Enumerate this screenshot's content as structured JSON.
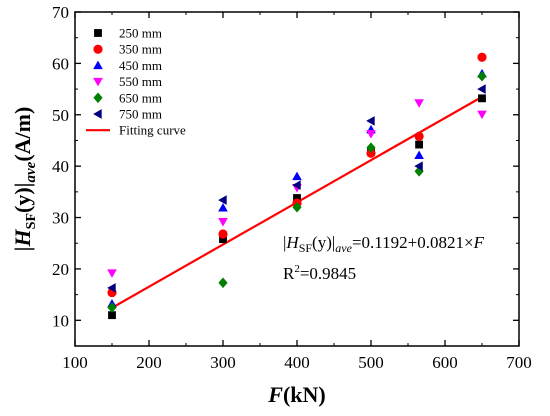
{
  "chart_data": {
    "type": "scatter",
    "xlabel": {
      "italic": "F",
      "rest": "(kN)"
    },
    "ylabel": {
      "bar1": "|",
      "H": "H",
      "sub": "SF",
      "mid": "(y)",
      "bar2": "|",
      "ave": "ave",
      "unit": "(A/m)"
    },
    "xlim": [
      100,
      700
    ],
    "ylim": [
      5,
      70
    ],
    "xticks": [
      "100",
      "200",
      "300",
      "400",
      "500",
      "600",
      "700"
    ],
    "yticks": [
      "10",
      "20",
      "30",
      "40",
      "50",
      "60",
      "70"
    ],
    "legend_position": "top-left",
    "series": [
      {
        "name": "250 mm",
        "marker": "square",
        "color": "#000000",
        "x": [
          150,
          300,
          400,
          500,
          565,
          650
        ],
        "y": [
          11.0,
          25.8,
          33.8,
          43.0,
          44.2,
          53.2
        ]
      },
      {
        "name": "350 mm",
        "marker": "circle",
        "color": "#ff0000",
        "x": [
          150,
          300,
          400,
          500,
          565,
          650
        ],
        "y": [
          15.4,
          26.8,
          32.8,
          42.5,
          45.8,
          61.2
        ]
      },
      {
        "name": "450 mm",
        "marker": "triangle-up",
        "color": "#0000ff",
        "x": [
          150,
          300,
          400,
          500,
          565,
          650
        ],
        "y": [
          13.2,
          31.9,
          38.0,
          47.1,
          42.1,
          58.0
        ]
      },
      {
        "name": "550 mm",
        "marker": "triangle-down",
        "color": "#ff00ff",
        "x": [
          150,
          300,
          400,
          500,
          565,
          650
        ],
        "y": [
          19.2,
          29.2,
          35.8,
          46.3,
          52.3,
          50.1
        ]
      },
      {
        "name": "650 mm",
        "marker": "diamond",
        "color": "#008000",
        "x": [
          150,
          300,
          400,
          500,
          565,
          650
        ],
        "y": [
          12.5,
          17.3,
          32.0,
          43.6,
          39.0,
          57.5
        ]
      },
      {
        "name": "750 mm",
        "marker": "triangle-left",
        "color": "#000080",
        "x": [
          150,
          300,
          400,
          500,
          565,
          650
        ],
        "y": [
          16.3,
          33.4,
          36.3,
          48.8,
          40.0,
          55.0
        ]
      }
    ],
    "fit": {
      "name": "Fitting curve",
      "color": "#ff0000",
      "intercept": 0.1192,
      "slope": 0.0821,
      "x_range": [
        150,
        650
      ]
    },
    "annotation": {
      "eq_lhs": "|",
      "eq_H": "H",
      "eq_sub": "SF",
      "eq_mid": "(y)|",
      "eq_ave": "ave",
      "eq_rhs": "=0.1192+0.0821×",
      "eq_F": "F",
      "r2_prefix": "R",
      "r2_sup": "2",
      "r2_value": "=0.9845"
    }
  }
}
